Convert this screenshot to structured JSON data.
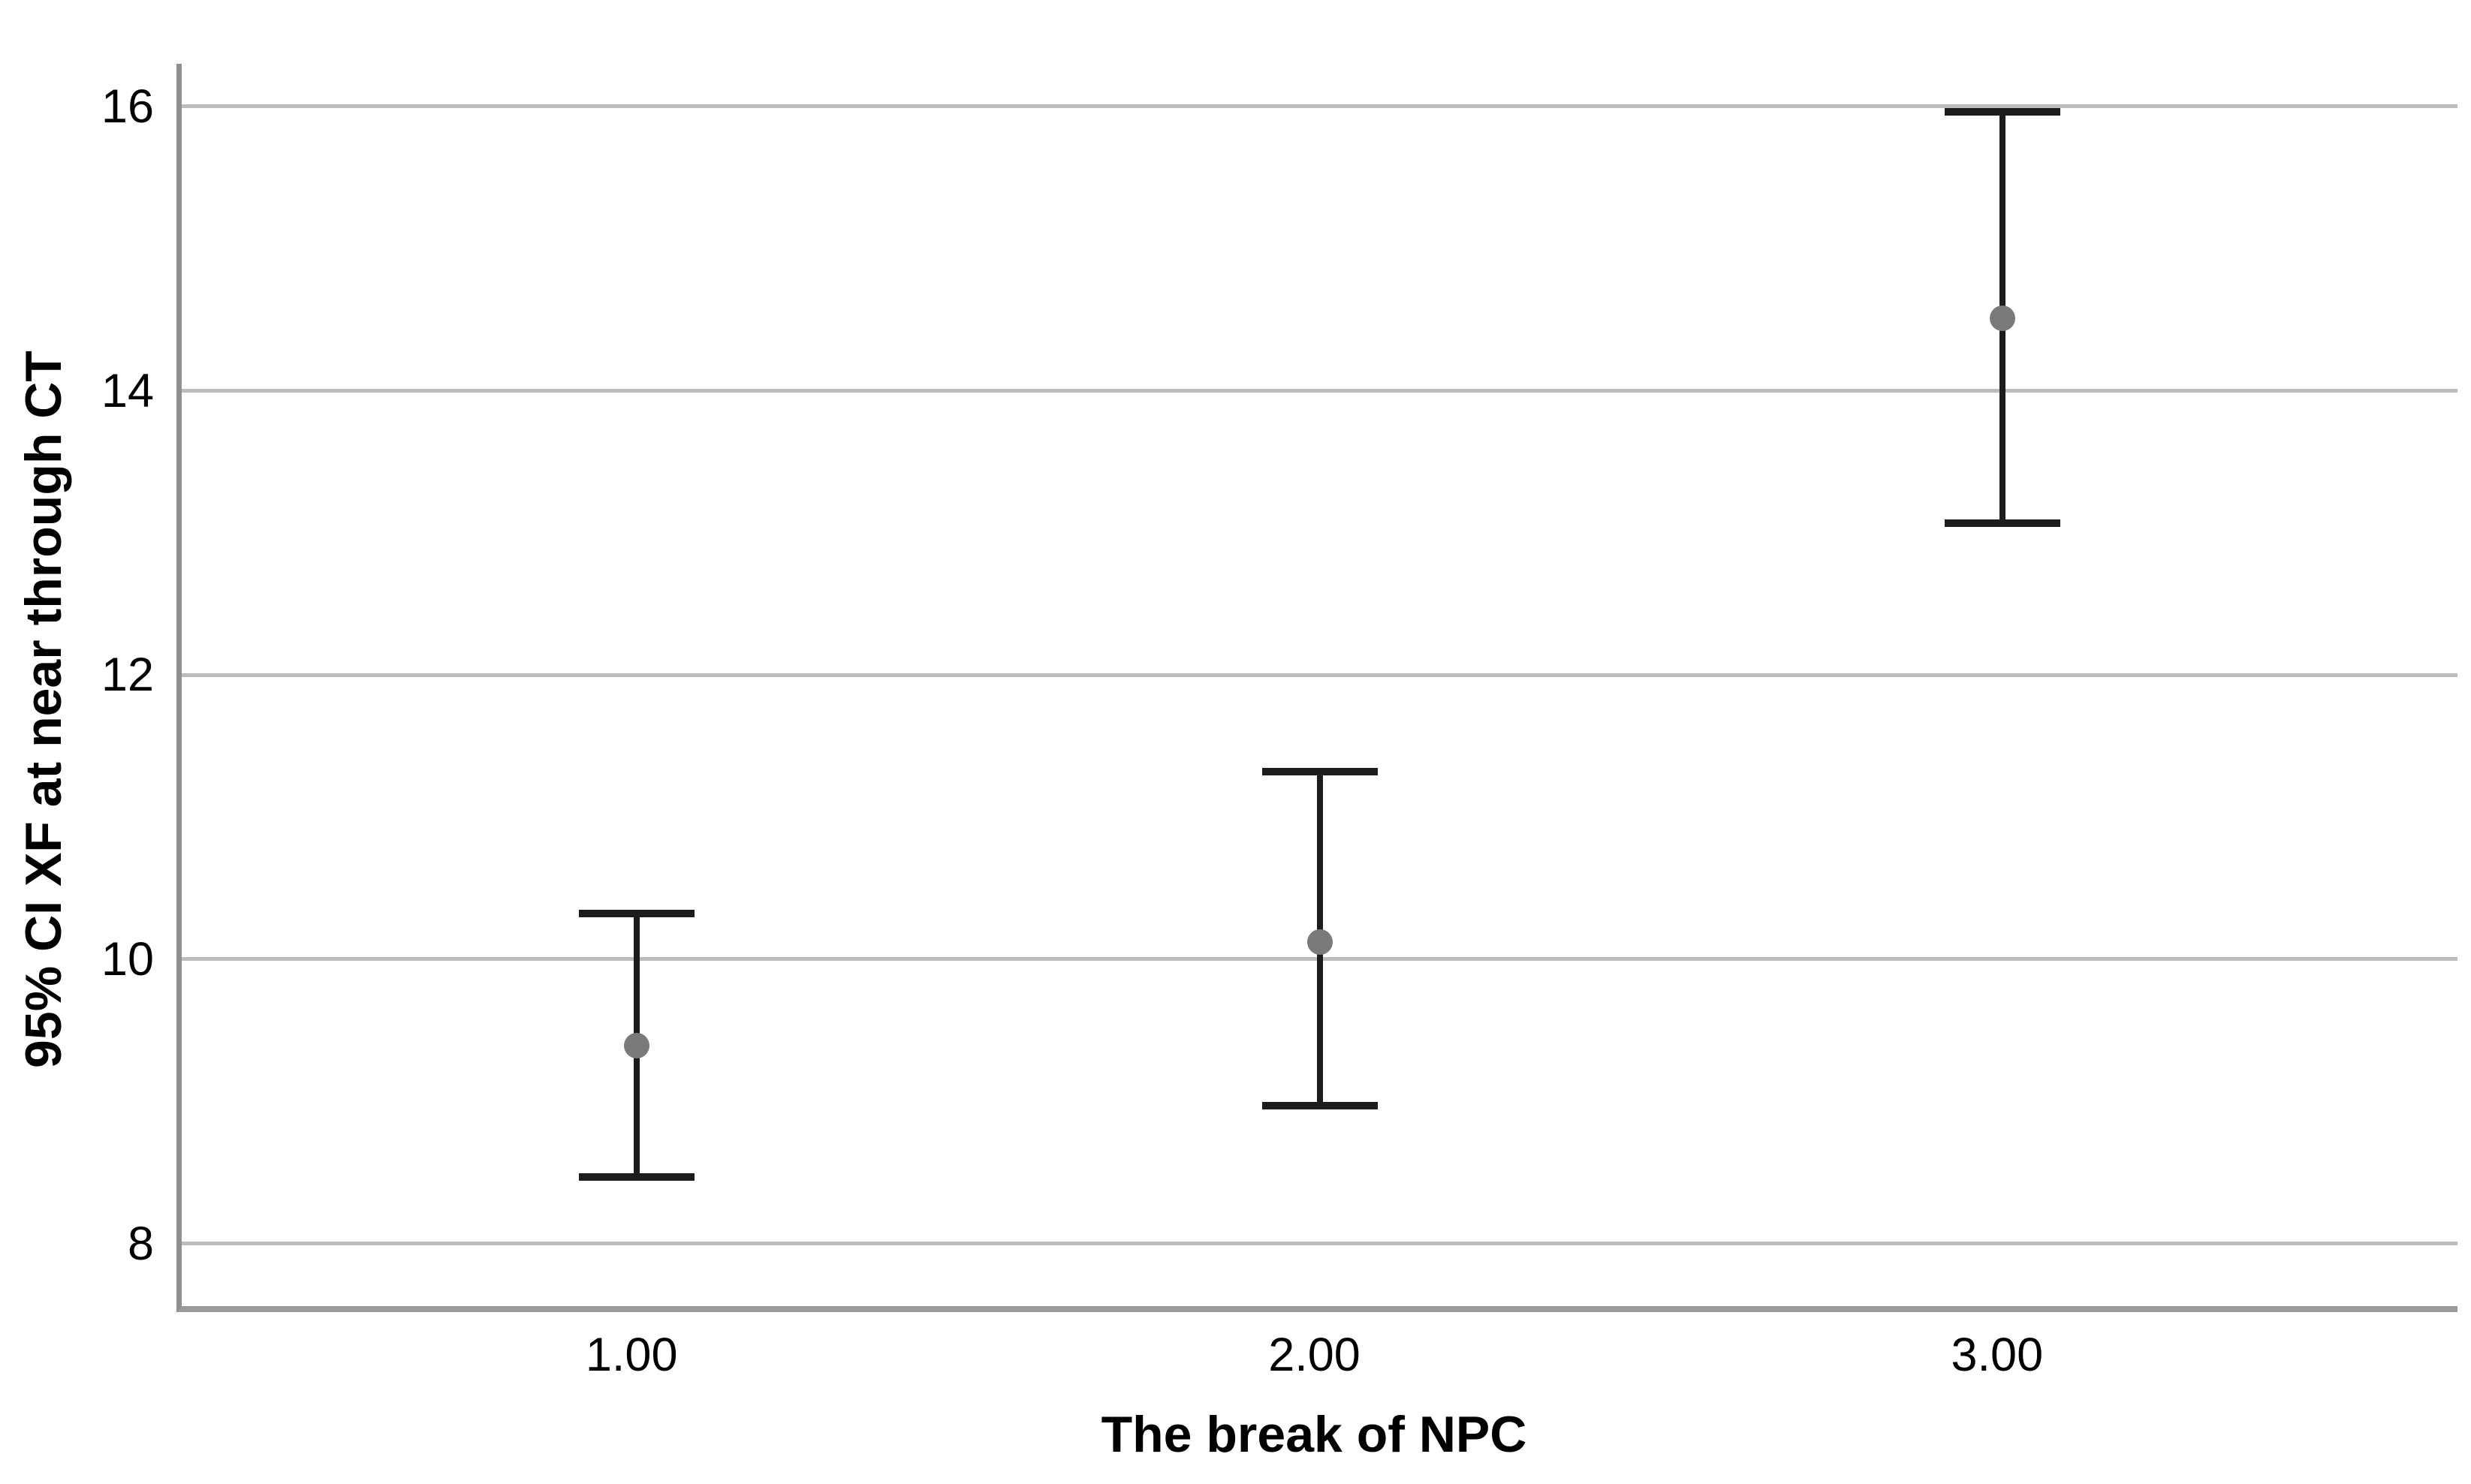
{
  "chart_data": {
    "type": "errorbar",
    "title": "",
    "xlabel": "The break of NPC",
    "ylabel": "95% CI XF at near through CT",
    "categories": [
      "1.00",
      "2.00",
      "3.00"
    ],
    "points": [
      {
        "x": "1.00",
        "mean": 9.39,
        "ci_low": 8.47,
        "ci_high": 10.32
      },
      {
        "x": "2.00",
        "mean": 10.12,
        "ci_low": 8.97,
        "ci_high": 11.32
      },
      {
        "x": "3.00",
        "mean": 14.51,
        "ci_low": 13.07,
        "ci_high": 15.96
      }
    ],
    "y_ticks": [
      8,
      10,
      12,
      14,
      16
    ],
    "ylim": [
      7.56,
      16.3
    ],
    "grid": "horizontal",
    "legend": "none"
  },
  "colors": {
    "background": "#ffffff",
    "error_bar": "#1c1c1c",
    "mean_dot": "#7a7a7a",
    "gridline": "#bcbcbc",
    "axis_line": "#8f8f8f",
    "text": "#000000"
  }
}
